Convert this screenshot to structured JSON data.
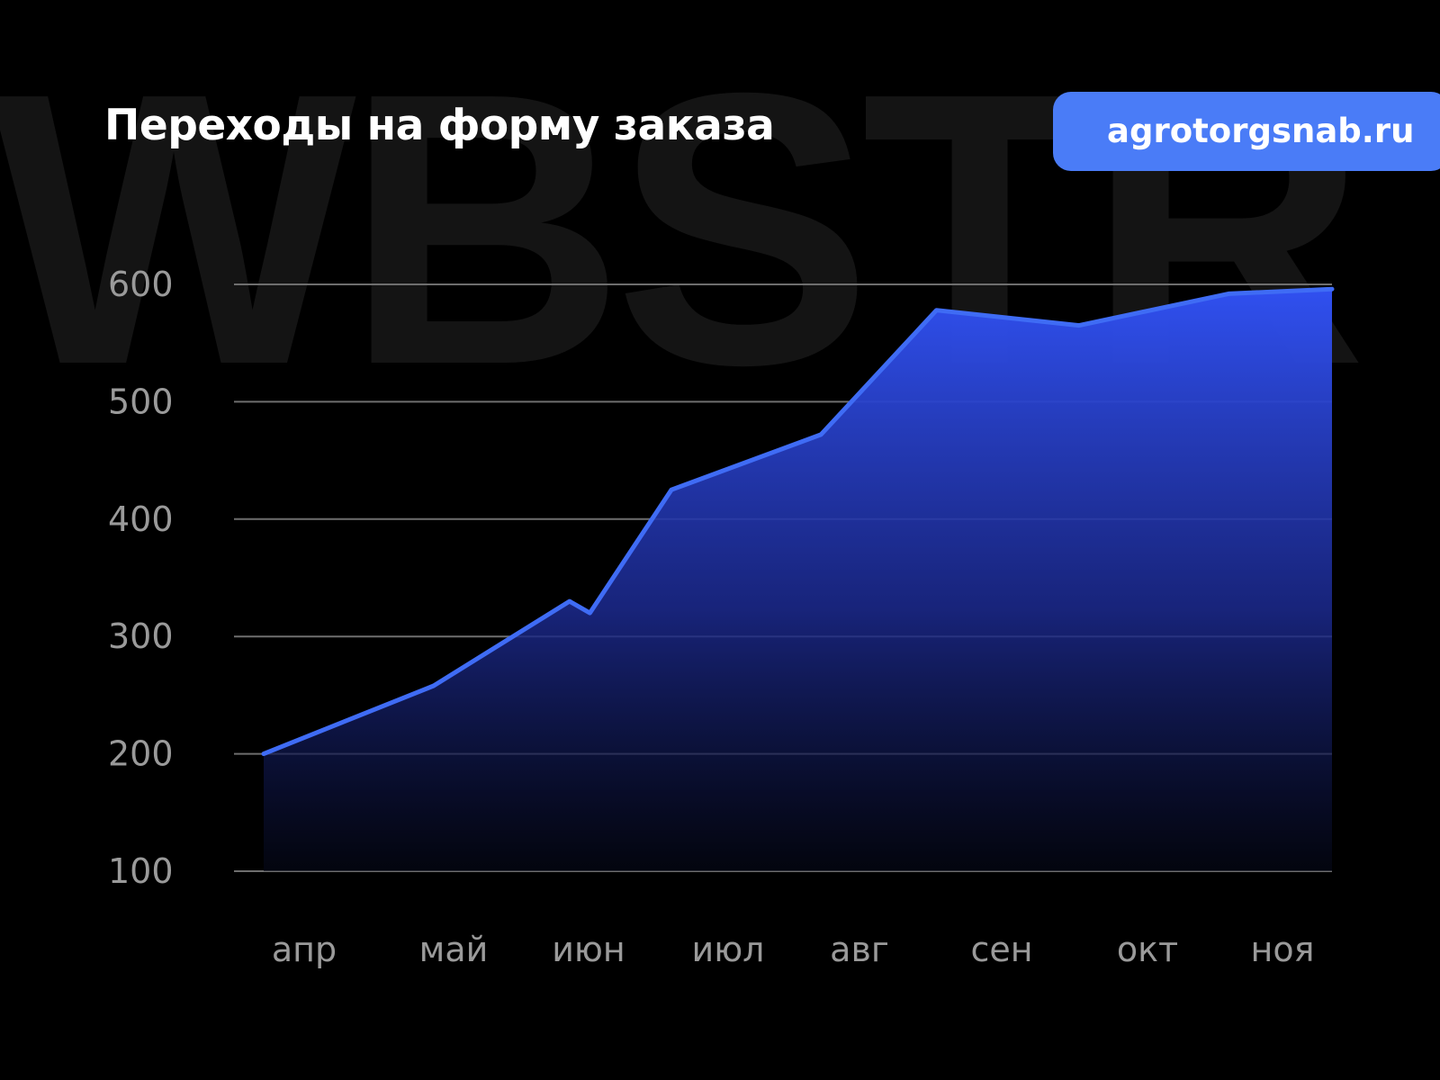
{
  "watermark": "WBSTR",
  "header": {
    "title": "Переходы на форму заказа",
    "site": "agrotorgsnab.ru"
  },
  "colors": {
    "background": "#000000",
    "line": "#3f6cf5",
    "area_top": "#3050f0",
    "badge": "#4a7cf7",
    "grid": "#6e6e6e",
    "tick_text": "#9a9a9a",
    "watermark": "#141414"
  },
  "chart_data": {
    "type": "area",
    "title": "Переходы на форму заказа",
    "xlabel": "",
    "ylabel": "",
    "categories": [
      "апр",
      "май",
      "июн",
      "июл",
      "авг",
      "сен",
      "окт",
      "ноя"
    ],
    "yticks": [
      100,
      200,
      300,
      400,
      500,
      600
    ],
    "ylim": [
      100,
      600
    ],
    "grid": true,
    "legend": "none",
    "series": [
      {
        "x": [
          0,
          1.25,
          2.25,
          2.4,
          3.0,
          4.1,
          4.95,
          6.0,
          7.1,
          7.35
        ],
        "values": [
          200,
          258,
          330,
          320,
          425,
          472,
          578,
          565,
          592,
          596
        ]
      }
    ]
  }
}
